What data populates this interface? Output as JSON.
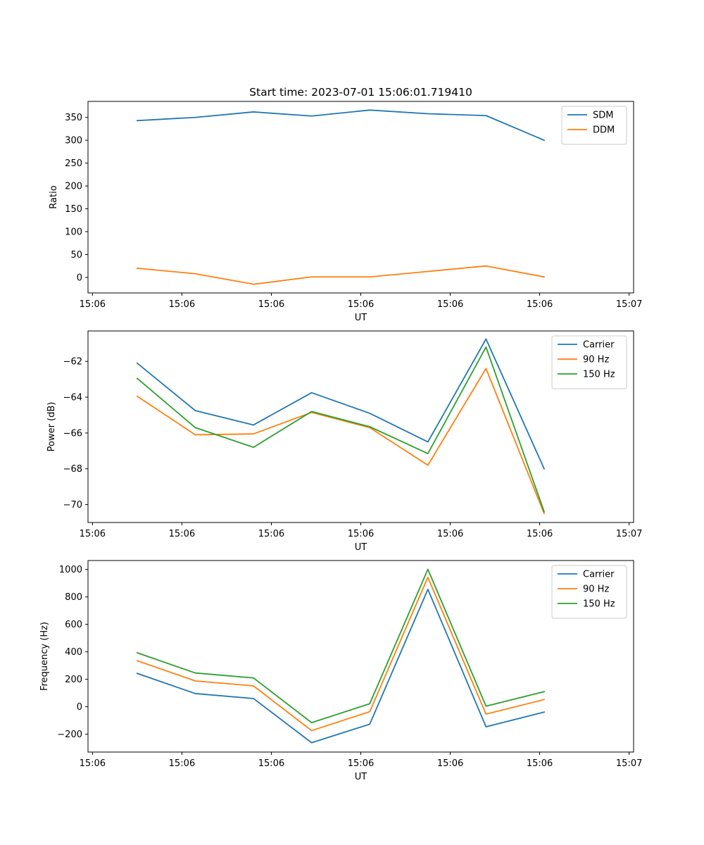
{
  "chart_data": [
    {
      "type": "line",
      "title": "Start time: 2023-07-01 15:06:01.719410",
      "xlabel": "UT",
      "ylabel": "Ratio",
      "x": [
        0.5,
        1.15,
        1.8,
        2.45,
        3.1,
        3.75,
        4.4,
        5.05
      ],
      "xlim": [
        -0.05,
        6.05
      ],
      "xticks": [
        0,
        1,
        2,
        3,
        4,
        5,
        6
      ],
      "xtick_labels": [
        "15:06",
        "15:06",
        "15:06",
        "15:06",
        "15:06",
        "15:06",
        "15:07"
      ],
      "ylim": [
        -34,
        385
      ],
      "yticks": [
        0,
        50,
        100,
        150,
        200,
        250,
        300,
        350
      ],
      "legend_position": "top-right",
      "series": [
        {
          "name": "SDM",
          "color": "#1f77b4",
          "values": [
            343,
            350,
            362,
            353,
            366,
            358,
            354,
            300
          ]
        },
        {
          "name": "DDM",
          "color": "#ff7f0e",
          "values": [
            20,
            8,
            -15,
            1,
            1,
            13,
            25,
            1
          ]
        }
      ]
    },
    {
      "type": "line",
      "title": "",
      "xlabel": "UT",
      "ylabel": "Power (dB)",
      "x": [
        0.5,
        1.15,
        1.8,
        2.45,
        3.1,
        3.75,
        4.4,
        5.05
      ],
      "xlim": [
        -0.05,
        6.05
      ],
      "xticks": [
        0,
        1,
        2,
        3,
        4,
        5,
        6
      ],
      "xtick_labels": [
        "15:06",
        "15:06",
        "15:06",
        "15:06",
        "15:06",
        "15:06",
        "15:07"
      ],
      "ylim": [
        -71.0,
        -60.3
      ],
      "yticks": [
        -70,
        -68,
        -66,
        -64,
        -62
      ],
      "legend_position": "top-right",
      "series": [
        {
          "name": "Carrier",
          "color": "#1f77b4",
          "values": [
            -62.1,
            -64.75,
            -65.55,
            -63.75,
            -64.9,
            -66.5,
            -60.75,
            -68.0
          ]
        },
        {
          "name": "90 Hz",
          "color": "#ff7f0e",
          "values": [
            -63.95,
            -66.1,
            -66.05,
            -64.85,
            -65.7,
            -67.8,
            -62.4,
            -70.5
          ]
        },
        {
          "name": "150 Hz",
          "color": "#2ca02c",
          "values": [
            -62.95,
            -65.7,
            -66.8,
            -64.8,
            -65.65,
            -67.15,
            -61.2,
            -70.4
          ]
        }
      ]
    },
    {
      "type": "line",
      "title": "",
      "xlabel": "UT",
      "ylabel": "Frequency (Hz)",
      "x": [
        0.5,
        1.15,
        1.8,
        2.45,
        3.1,
        3.75,
        4.4,
        5.05
      ],
      "xlim": [
        -0.05,
        6.05
      ],
      "xticks": [
        0,
        1,
        2,
        3,
        4,
        5,
        6
      ],
      "xtick_labels": [
        "15:06",
        "15:06",
        "15:06",
        "15:06",
        "15:06",
        "15:06",
        "15:07"
      ],
      "ylim": [
        -330,
        1065
      ],
      "yticks": [
        -200,
        0,
        200,
        400,
        600,
        800,
        1000
      ],
      "legend_position": "top-right",
      "series": [
        {
          "name": "Carrier",
          "color": "#1f77b4",
          "values": [
            243,
            96,
            60,
            -262,
            -127,
            855,
            -146,
            -39
          ]
        },
        {
          "name": "90 Hz",
          "color": "#ff7f0e",
          "values": [
            335,
            188,
            152,
            -174,
            -36,
            943,
            -54,
            52
          ]
        },
        {
          "name": "150 Hz",
          "color": "#2ca02c",
          "values": [
            393,
            246,
            210,
            -116,
            22,
            1001,
            4,
            110
          ]
        }
      ]
    }
  ]
}
